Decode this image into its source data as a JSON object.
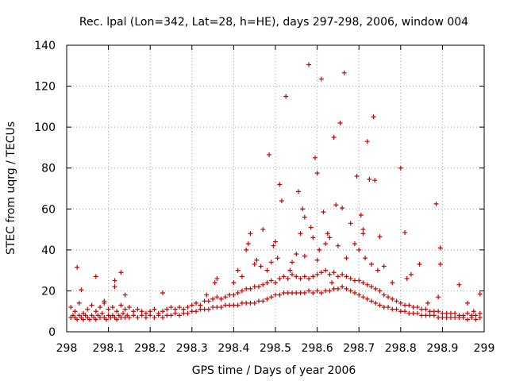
{
  "chart_data": {
    "type": "scatter",
    "title": "Rec. lpal (Lon=342, Lat=28, h=HE), days 297-298, 2006, window 004",
    "xlabel": "GPS time / Days of year 2006",
    "ylabel": "STEC from uqrg / TECUs",
    "xlim": [
      298,
      299
    ],
    "ylim": [
      0,
      140
    ],
    "xticks": [
      "298",
      "298.1",
      "298.2",
      "298.3",
      "298.4",
      "298.5",
      "298.6",
      "298.7",
      "298.8",
      "298.9",
      "299"
    ],
    "yticks": [
      "0",
      "20",
      "40",
      "60",
      "80",
      "100",
      "120",
      "140"
    ],
    "grid": true,
    "marker": "plus",
    "color": "#cc0000",
    "points": [
      [
        298.01,
        7
      ],
      [
        298.015,
        8
      ],
      [
        298.02,
        7
      ],
      [
        298.025,
        6
      ],
      [
        298.03,
        8
      ],
      [
        298.035,
        7
      ],
      [
        298.04,
        6
      ],
      [
        298.045,
        8
      ],
      [
        298.05,
        7
      ],
      [
        298.055,
        6
      ],
      [
        298.06,
        8
      ],
      [
        298.065,
        7
      ],
      [
        298.07,
        6
      ],
      [
        298.075,
        8
      ],
      [
        298.08,
        7
      ],
      [
        298.085,
        9
      ],
      [
        298.09,
        7
      ],
      [
        298.095,
        6
      ],
      [
        298.1,
        8
      ],
      [
        298.105,
        7
      ],
      [
        298.11,
        8
      ],
      [
        298.115,
        7
      ],
      [
        298.12,
        6
      ],
      [
        298.125,
        8
      ],
      [
        298.13,
        7
      ],
      [
        298.135,
        9
      ],
      [
        298.14,
        7
      ],
      [
        298.145,
        8
      ],
      [
        298.15,
        7
      ],
      [
        298.16,
        8
      ],
      [
        298.17,
        7
      ],
      [
        298.18,
        8
      ],
      [
        298.19,
        7
      ],
      [
        298.2,
        8
      ],
      [
        298.21,
        7
      ],
      [
        298.22,
        8
      ],
      [
        298.23,
        7
      ],
      [
        298.24,
        8
      ],
      [
        298.25,
        8
      ],
      [
        298.26,
        9
      ],
      [
        298.27,
        8
      ],
      [
        298.28,
        9
      ],
      [
        298.29,
        9
      ],
      [
        298.3,
        10
      ],
      [
        298.31,
        10
      ],
      [
        298.32,
        11
      ],
      [
        298.33,
        11
      ],
      [
        298.34,
        11
      ],
      [
        298.35,
        12
      ],
      [
        298.36,
        12
      ],
      [
        298.37,
        12
      ],
      [
        298.38,
        13
      ],
      [
        298.39,
        13
      ],
      [
        298.4,
        13
      ],
      [
        298.41,
        13
      ],
      [
        298.42,
        14
      ],
      [
        298.43,
        14
      ],
      [
        298.44,
        14
      ],
      [
        298.45,
        14
      ],
      [
        298.46,
        15
      ],
      [
        298.47,
        15
      ],
      [
        298.48,
        16
      ],
      [
        298.49,
        17
      ],
      [
        298.5,
        18
      ],
      [
        298.51,
        18
      ],
      [
        298.52,
        19
      ],
      [
        298.53,
        19
      ],
      [
        298.54,
        19
      ],
      [
        298.55,
        19
      ],
      [
        298.56,
        19
      ],
      [
        298.57,
        19
      ],
      [
        298.58,
        20
      ],
      [
        298.59,
        19
      ],
      [
        298.6,
        20
      ],
      [
        298.61,
        19
      ],
      [
        298.62,
        20
      ],
      [
        298.63,
        20
      ],
      [
        298.64,
        21
      ],
      [
        298.65,
        21
      ],
      [
        298.66,
        22
      ],
      [
        298.67,
        21
      ],
      [
        298.68,
        20
      ],
      [
        298.69,
        19
      ],
      [
        298.7,
        18
      ],
      [
        298.71,
        17
      ],
      [
        298.72,
        16
      ],
      [
        298.73,
        15
      ],
      [
        298.74,
        14
      ],
      [
        298.75,
        13
      ],
      [
        298.76,
        12
      ],
      [
        298.77,
        12
      ],
      [
        298.78,
        11
      ],
      [
        298.79,
        11
      ],
      [
        298.8,
        10
      ],
      [
        298.81,
        10
      ],
      [
        298.82,
        9
      ],
      [
        298.83,
        9
      ],
      [
        298.84,
        9
      ],
      [
        298.85,
        8
      ],
      [
        298.86,
        8
      ],
      [
        298.87,
        8
      ],
      [
        298.88,
        8
      ],
      [
        298.89,
        7
      ],
      [
        298.9,
        7
      ],
      [
        298.91,
        7
      ],
      [
        298.92,
        7
      ],
      [
        298.93,
        7
      ],
      [
        298.94,
        7
      ],
      [
        298.95,
        7
      ],
      [
        298.96,
        6
      ],
      [
        298.97,
        7
      ],
      [
        298.98,
        6
      ],
      [
        298.99,
        7
      ],
      [
        298.01,
        12
      ],
      [
        298.02,
        10
      ],
      [
        298.03,
        14
      ],
      [
        298.04,
        9
      ],
      [
        298.05,
        11
      ],
      [
        298.06,
        13
      ],
      [
        298.07,
        10
      ],
      [
        298.08,
        12
      ],
      [
        298.09,
        14
      ],
      [
        298.1,
        11
      ],
      [
        298.11,
        12
      ],
      [
        298.12,
        10
      ],
      [
        298.13,
        13
      ],
      [
        298.14,
        11
      ],
      [
        298.15,
        12
      ],
      [
        298.16,
        10
      ],
      [
        298.17,
        11
      ],
      [
        298.18,
        10
      ],
      [
        298.19,
        9
      ],
      [
        298.2,
        10
      ],
      [
        298.21,
        11
      ],
      [
        298.22,
        9
      ],
      [
        298.23,
        10
      ],
      [
        298.24,
        11
      ],
      [
        298.25,
        12
      ],
      [
        298.26,
        11
      ],
      [
        298.27,
        12
      ],
      [
        298.28,
        11
      ],
      [
        298.29,
        12
      ],
      [
        298.3,
        13
      ],
      [
        298.31,
        14
      ],
      [
        298.32,
        13
      ],
      [
        298.33,
        15
      ],
      [
        298.34,
        15
      ],
      [
        298.35,
        16
      ],
      [
        298.36,
        17
      ],
      [
        298.37,
        16
      ],
      [
        298.38,
        17
      ],
      [
        298.39,
        18
      ],
      [
        298.4,
        18
      ],
      [
        298.41,
        19
      ],
      [
        298.42,
        20
      ],
      [
        298.43,
        21
      ],
      [
        298.44,
        21
      ],
      [
        298.45,
        22
      ],
      [
        298.46,
        22
      ],
      [
        298.47,
        23
      ],
      [
        298.48,
        24
      ],
      [
        298.49,
        25
      ],
      [
        298.5,
        24
      ],
      [
        298.51,
        26
      ],
      [
        298.52,
        27
      ],
      [
        298.53,
        26
      ],
      [
        298.54,
        28
      ],
      [
        298.55,
        27
      ],
      [
        298.56,
        26
      ],
      [
        298.57,
        27
      ],
      [
        298.58,
        26
      ],
      [
        298.59,
        27
      ],
      [
        298.6,
        28
      ],
      [
        298.61,
        29
      ],
      [
        298.62,
        30
      ],
      [
        298.63,
        28
      ],
      [
        298.64,
        29
      ],
      [
        298.65,
        27
      ],
      [
        298.66,
        28
      ],
      [
        298.67,
        27
      ],
      [
        298.68,
        26
      ],
      [
        298.69,
        25
      ],
      [
        298.7,
        25
      ],
      [
        298.71,
        24
      ],
      [
        298.72,
        23
      ],
      [
        298.73,
        22
      ],
      [
        298.74,
        21
      ],
      [
        298.75,
        20
      ],
      [
        298.76,
        18
      ],
      [
        298.77,
        17
      ],
      [
        298.78,
        16
      ],
      [
        298.79,
        15
      ],
      [
        298.8,
        14
      ],
      [
        298.81,
        13
      ],
      [
        298.82,
        13
      ],
      [
        298.83,
        12
      ],
      [
        298.84,
        12
      ],
      [
        298.85,
        11
      ],
      [
        298.86,
        11
      ],
      [
        298.87,
        10
      ],
      [
        298.88,
        10
      ],
      [
        298.89,
        10
      ],
      [
        298.9,
        9
      ],
      [
        298.91,
        9
      ],
      [
        298.92,
        9
      ],
      [
        298.93,
        9
      ],
      [
        298.94,
        8
      ],
      [
        298.95,
        8
      ],
      [
        298.96,
        9
      ],
      [
        298.97,
        8
      ],
      [
        298.98,
        8
      ],
      [
        298.99,
        9
      ],
      [
        298.025,
        31.5
      ],
      [
        298.035,
        20.5
      ],
      [
        298.07,
        27
      ],
      [
        298.09,
        15
      ],
      [
        298.115,
        25
      ],
      [
        298.115,
        22
      ],
      [
        298.13,
        29
      ],
      [
        298.14,
        18
      ],
      [
        298.23,
        19
      ],
      [
        298.335,
        18
      ],
      [
        298.355,
        24
      ],
      [
        298.36,
        26
      ],
      [
        298.4,
        24
      ],
      [
        298.41,
        30
      ],
      [
        298.42,
        27
      ],
      [
        298.43,
        40
      ],
      [
        298.435,
        43
      ],
      [
        298.44,
        48
      ],
      [
        298.45,
        33
      ],
      [
        298.455,
        35
      ],
      [
        298.465,
        32
      ],
      [
        298.47,
        50
      ],
      [
        298.48,
        30
      ],
      [
        298.485,
        86.5
      ],
      [
        298.49,
        34
      ],
      [
        298.495,
        42
      ],
      [
        298.5,
        44
      ],
      [
        298.505,
        36
      ],
      [
        298.51,
        72
      ],
      [
        298.515,
        64
      ],
      [
        298.525,
        115
      ],
      [
        298.535,
        30
      ],
      [
        298.54,
        34
      ],
      [
        298.55,
        38
      ],
      [
        298.555,
        68.5
      ],
      [
        298.56,
        48
      ],
      [
        298.565,
        60
      ],
      [
        298.57,
        56
      ],
      [
        298.57,
        37
      ],
      [
        298.58,
        130.5
      ],
      [
        298.585,
        51
      ],
      [
        298.59,
        46
      ],
      [
        298.595,
        85
      ],
      [
        298.6,
        77.5
      ],
      [
        298.6,
        35
      ],
      [
        298.605,
        40
      ],
      [
        298.61,
        123.5
      ],
      [
        298.615,
        58.5
      ],
      [
        298.62,
        43
      ],
      [
        298.625,
        48
      ],
      [
        298.63,
        46
      ],
      [
        298.635,
        24
      ],
      [
        298.64,
        95
      ],
      [
        298.645,
        62
      ],
      [
        298.65,
        42
      ],
      [
        298.655,
        102
      ],
      [
        298.66,
        60.5
      ],
      [
        298.665,
        126.5
      ],
      [
        298.67,
        36
      ],
      [
        298.68,
        53
      ],
      [
        298.69,
        43
      ],
      [
        298.695,
        76
      ],
      [
        298.7,
        40
      ],
      [
        298.705,
        57
      ],
      [
        298.71,
        50
      ],
      [
        298.71,
        48
      ],
      [
        298.715,
        36
      ],
      [
        298.72,
        93
      ],
      [
        298.725,
        74.5
      ],
      [
        298.73,
        33
      ],
      [
        298.735,
        105
      ],
      [
        298.738,
        74
      ],
      [
        298.745,
        30
      ],
      [
        298.75,
        46.5
      ],
      [
        298.76,
        32
      ],
      [
        298.78,
        24
      ],
      [
        298.8,
        80
      ],
      [
        298.81,
        48.5
      ],
      [
        298.815,
        26
      ],
      [
        298.825,
        28
      ],
      [
        298.845,
        33
      ],
      [
        298.865,
        14
      ],
      [
        298.885,
        62.5
      ],
      [
        298.89,
        17
      ],
      [
        298.895,
        33
      ],
      [
        298.895,
        41
      ],
      [
        298.94,
        23
      ],
      [
        298.96,
        14
      ],
      [
        298.975,
        10
      ],
      [
        298.99,
        18.5
      ]
    ]
  }
}
